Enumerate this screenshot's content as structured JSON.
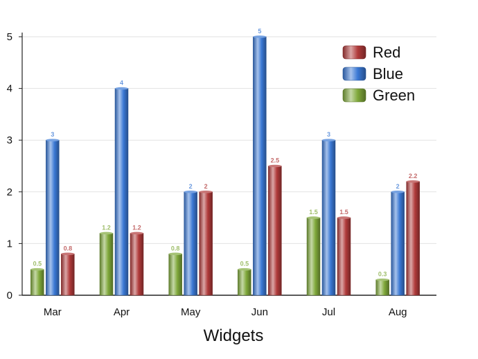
{
  "chart_data": {
    "type": "bar",
    "title": "",
    "xlabel": "Widgets",
    "ylabel": "",
    "categories": [
      "Mar",
      "Apr",
      "May",
      "Jun",
      "Jul",
      "Aug"
    ],
    "ylim": [
      0,
      5
    ],
    "yticks": [
      "0",
      "1",
      "2",
      "3",
      "4",
      "5"
    ],
    "grid": true,
    "legend_position": "top-right",
    "legend_order": [
      "Red",
      "Blue",
      "Green"
    ],
    "series": [
      {
        "name": "Green",
        "color": "#7fa83a",
        "values": [
          0.5,
          1.2,
          0.8,
          0.5,
          1.5,
          0.3
        ],
        "labels": [
          "0.5",
          "1.2",
          "0.8",
          "0.5",
          "1.5",
          "0.3"
        ]
      },
      {
        "name": "Blue",
        "color": "#3a78d4",
        "values": [
          3,
          4,
          2,
          5,
          3,
          2
        ],
        "labels": [
          "3",
          "4",
          "2",
          "5",
          "3",
          "2"
        ]
      },
      {
        "name": "Red",
        "color": "#b03a3a",
        "values": [
          0.8,
          1.2,
          2,
          2.5,
          1.5,
          2.2
        ],
        "labels": [
          "0.8",
          "1.2",
          "2",
          "2.5",
          "1.5",
          "2.2"
        ]
      }
    ]
  }
}
